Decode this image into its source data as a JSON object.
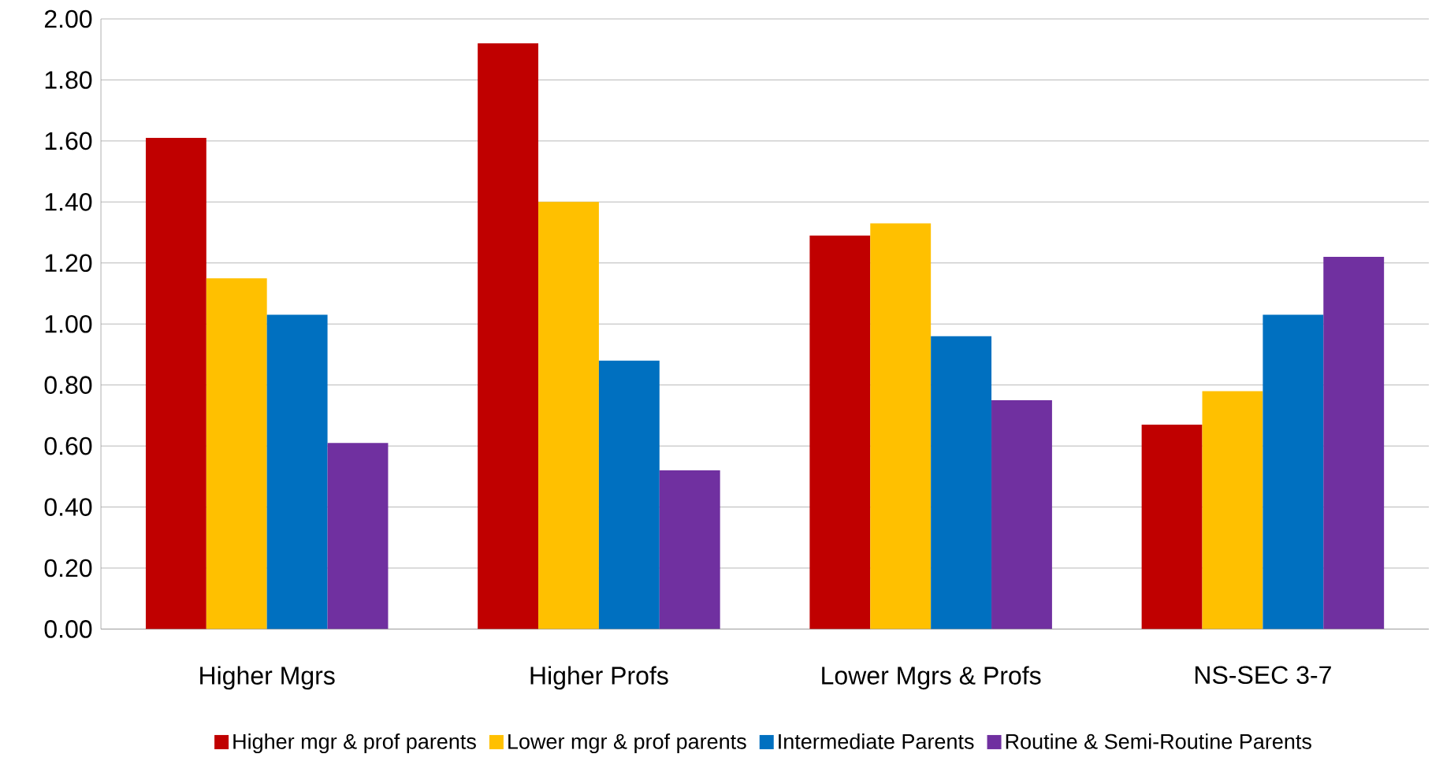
{
  "chart_data": {
    "type": "bar",
    "categories": [
      "Higher Mgrs",
      "Higher Profs",
      "Lower Mgrs & Profs",
      "NS-SEC 3-7"
    ],
    "series": [
      {
        "name": "Higher mgr & prof parents",
        "color": "#c00000",
        "values": [
          1.61,
          1.92,
          1.29,
          0.67
        ]
      },
      {
        "name": "Lower mgr & prof parents",
        "color": "#ffc000",
        "values": [
          1.15,
          1.4,
          1.33,
          0.78
        ]
      },
      {
        "name": "Intermediate Parents",
        "color": "#0070c0",
        "values": [
          1.03,
          0.88,
          0.96,
          1.03
        ]
      },
      {
        "name": "Routine & Semi-Routine Parents",
        "color": "#7030a0",
        "values": [
          0.61,
          0.52,
          0.75,
          1.22
        ]
      }
    ],
    "ylim": [
      0,
      2
    ],
    "yticks": [
      {
        "value": 0,
        "label": "0.00"
      },
      {
        "value": 0.2,
        "label": "0.20"
      },
      {
        "value": 0.4,
        "label": "0.40"
      },
      {
        "value": 0.6,
        "label": "0.60"
      },
      {
        "value": 0.8,
        "label": "0.80"
      },
      {
        "value": 1.0,
        "label": "1.00"
      },
      {
        "value": 1.2,
        "label": "1.20"
      },
      {
        "value": 1.4,
        "label": "1.40"
      },
      {
        "value": 1.6,
        "label": "1.60"
      },
      {
        "value": 1.8,
        "label": "1.80"
      },
      {
        "value": 2.0,
        "label": "2.00"
      }
    ],
    "grid": "y",
    "legend": "bottom"
  }
}
